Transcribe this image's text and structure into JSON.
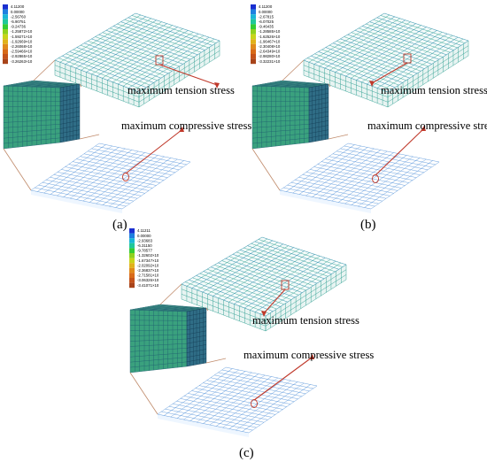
{
  "colors": {
    "mesh": "#2a9d8f",
    "mesh_light": "#4f8fd8",
    "cube_front": "#3aa17e",
    "cube_side": "#2f6d86",
    "callout": "#c0392b",
    "outline": "#c08a6a"
  },
  "legend_scale": [
    "#1a2fd0",
    "#1e7fe0",
    "#19b6d6",
    "#1fc79a",
    "#33cc33",
    "#8fd11e",
    "#c8d41a",
    "#e0b21a",
    "#e08a1a",
    "#d86a18",
    "#c4521a",
    "#a8441a"
  ],
  "panels": [
    {
      "caption": "(a)",
      "tension_label": "maximum tension stress",
      "compressive_label": "maximum compressive stress",
      "legend": [
        "4.11200",
        "0.00000",
        "-2.56760",
        "-5.90751",
        "-9.24736",
        "-1.25872×10",
        "-1.59271×10",
        "-1.92669×10",
        "-2.26068×10",
        "-2.59466×10",
        "-2.92865×10",
        "-3.26263×10"
      ]
    },
    {
      "caption": "(b)",
      "tension_label": "maximum tension stress",
      "compressive_label": "maximum compressive stress",
      "legend": [
        "4.11200",
        "0.00000",
        "-2.67815",
        "-6.07025",
        "-9.46435",
        "-1.28585×10",
        "-1.62526×10",
        "-1.96467×10",
        "-2.30408×10",
        "-2.64349×10",
        "-2.98280×10",
        "-3.32231×10"
      ]
    },
    {
      "caption": "(c)",
      "tension_label": "maximum tension stress",
      "compressive_label": "maximum compressive stress",
      "legend": [
        "4.11211",
        "0.00000",
        "-2.93683",
        "-6.31150",
        "-9.78577",
        "-1.32602×10",
        "-1.67347×10",
        "-2.02092×10",
        "-2.36837×10",
        "-2.71581×10",
        "-3.06326×10",
        "-3.41071×10"
      ]
    }
  ]
}
